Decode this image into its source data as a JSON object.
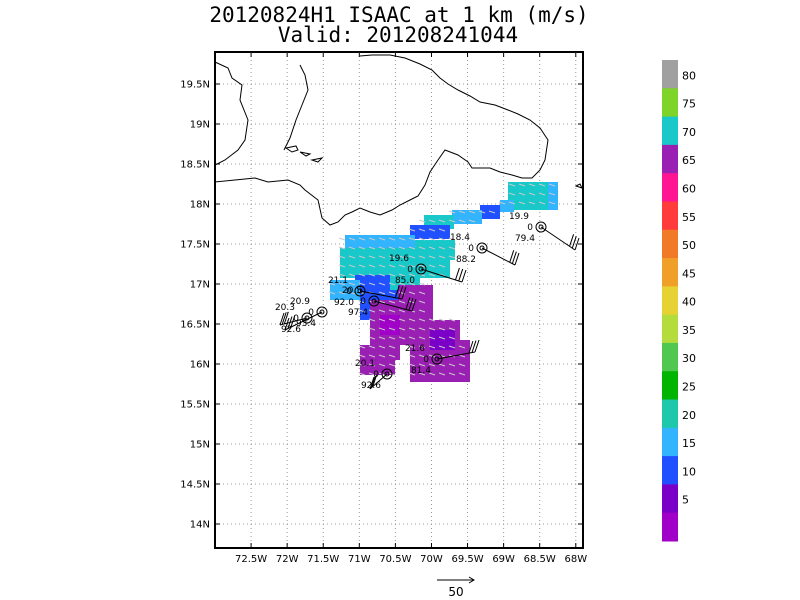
{
  "title": {
    "line1": "20120824H1 ISAAC at 1 km (m/s)",
    "line2": "Valid: 201208241044"
  },
  "map": {
    "lat_labels": [
      "19.5N",
      "19N",
      "18.5N",
      "18N",
      "17.5N",
      "17N",
      "16.5N",
      "16N",
      "15.5N",
      "15N",
      "14.5N",
      "14N"
    ],
    "lon_labels": [
      "72.5W",
      "72W",
      "71.5W",
      "71W",
      "70.5W",
      "70W",
      "69.5W",
      "69W",
      "68.5W",
      "68W"
    ],
    "lat_values": [
      19.5,
      19,
      18.5,
      18,
      17.5,
      17,
      16.5,
      16,
      15.5,
      15,
      14.5,
      14
    ],
    "lon_values": [
      -72.5,
      -72,
      -71.5,
      -71,
      -70.5,
      -70,
      -69.5,
      -69,
      -68.5,
      -68
    ],
    "lon_range": [
      -73.0,
      -67.9
    ],
    "lat_range": [
      13.7,
      19.9
    ],
    "grid": true
  },
  "colorbar": {
    "labels": [
      "80",
      "75",
      "70",
      "65",
      "60",
      "55",
      "50",
      "45",
      "40",
      "35",
      "30",
      "25",
      "20",
      "15",
      "10",
      "5"
    ],
    "colors": [
      "#a0a0a0",
      "#7fd42a",
      "#19c8c8",
      "#9a1fb3",
      "#ff1493",
      "#ff3b3b",
      "#f07a28",
      "#f0a028",
      "#e6d232",
      "#b4dc3c",
      "#50c850",
      "#00b400",
      "#1ec8aa",
      "#33b4ff",
      "#2050ff",
      "#7a00c8",
      "#a000c8"
    ]
  },
  "observations": [
    {
      "label_top": "19.9",
      "label_mid": "0",
      "label_bot": "79.4"
    },
    {
      "label_top": "18.4",
      "label_mid": "0",
      "label_bot": "88.2"
    },
    {
      "label_top": "19.6",
      "label_mid": "0",
      "label_bot": "85.0"
    },
    {
      "label_top": "21.1",
      "label_mid": "0",
      "label_bot": "92.0"
    },
    {
      "label_top": "20.9",
      "label_mid": "0",
      "label_bot": "93.4"
    },
    {
      "label_top": "20.3",
      "label_mid": "0",
      "label_bot": "92.6"
    },
    {
      "label_top": "20.5",
      "label_mid": "0",
      "label_bot": "97.4"
    },
    {
      "label_top": "21.6",
      "label_mid": "0",
      "label_bot": "81.4"
    },
    {
      "label_top": "20.1",
      "label_mid": "0",
      "label_bot": "92.6"
    }
  ],
  "reference_vector": {
    "label": "50"
  }
}
